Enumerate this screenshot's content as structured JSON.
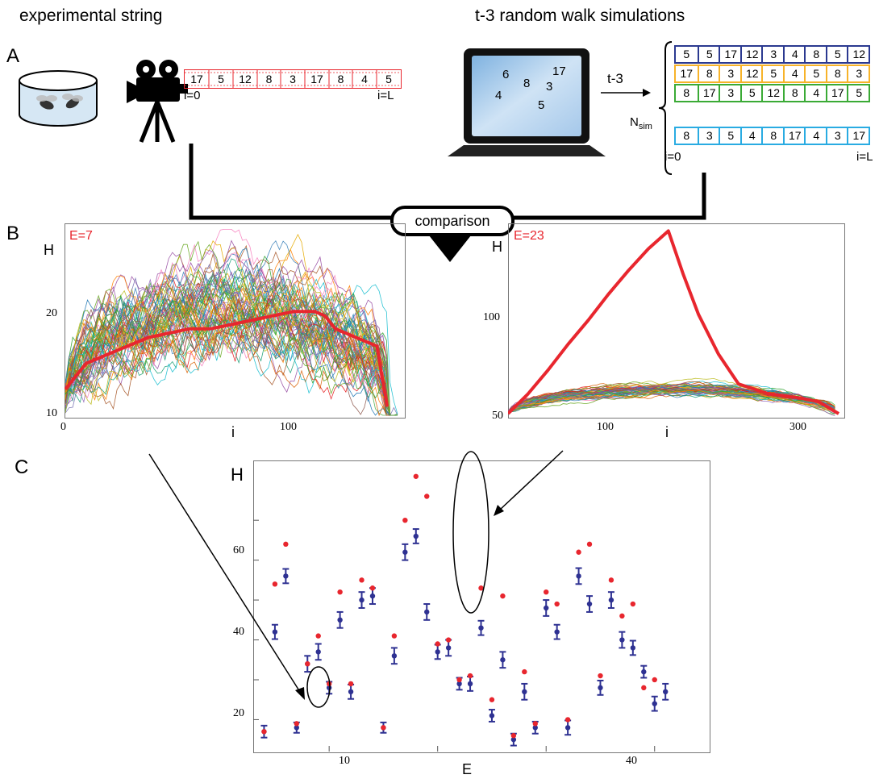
{
  "header": {
    "left_title": "experimental string",
    "right_title": "t-3 random walk simulations"
  },
  "panels": {
    "a": "A",
    "b": "B",
    "c": "C"
  },
  "experimental": {
    "sequence": [
      "17",
      "5",
      "12",
      "8",
      "3",
      "17",
      "8",
      "4",
      "5"
    ],
    "start_label": "i=0",
    "end_label": "i=L"
  },
  "laptop": {
    "numbers": [
      "6",
      "8",
      "17",
      "3",
      "4",
      "5"
    ]
  },
  "simulation": {
    "arrow_label": "t-3",
    "nsim_label": "N",
    "nsim_sub": "sim",
    "start_label": "i=0",
    "end_label": "i=L",
    "rows": [
      {
        "color": "#2b3990",
        "values": [
          "5",
          "5",
          "17",
          "12",
          "3",
          "4",
          "8",
          "5",
          "12"
        ]
      },
      {
        "color": "#f7b329",
        "values": [
          "17",
          "8",
          "3",
          "12",
          "5",
          "4",
          "5",
          "8",
          "3"
        ]
      },
      {
        "color": "#3aaa35",
        "values": [
          "8",
          "17",
          "3",
          "5",
          "12",
          "8",
          "4",
          "17",
          "5"
        ]
      },
      {
        "color": "#29abe2",
        "values": [
          "8",
          "3",
          "5",
          "4",
          "8",
          "17",
          "4",
          "3",
          "17"
        ]
      }
    ]
  },
  "comparison_label": "comparison",
  "chart_data": [
    {
      "type": "line",
      "annotation": "E=7",
      "ylabel": "H",
      "xlabel": "i",
      "xticks": [
        "0",
        "100"
      ],
      "yticks": [
        "10",
        "20"
      ],
      "xlim": [
        0,
        160
      ],
      "ylim": [
        10,
        32
      ],
      "highlight_series": {
        "color": "#e8262e",
        "x": [
          0,
          10,
          20,
          30,
          40,
          50,
          60,
          70,
          80,
          90,
          100,
          110,
          120,
          125,
          130,
          140,
          150,
          155
        ],
        "y": [
          13,
          16,
          17,
          18,
          19,
          19.5,
          20,
          20,
          20.5,
          21,
          21.5,
          22,
          22,
          21.5,
          20,
          19,
          18,
          11
        ]
      }
    },
    {
      "type": "line",
      "annotation": "E=23",
      "ylabel": "H",
      "xlabel": "i",
      "xticks": [
        "100",
        "300"
      ],
      "yticks": [
        "50",
        "100"
      ],
      "xlim": [
        0,
        330
      ],
      "ylim": [
        50,
        145
      ],
      "highlight_series": {
        "color": "#e8262e",
        "x": [
          0,
          20,
          40,
          60,
          80,
          100,
          120,
          140,
          160,
          175,
          190,
          210,
          230,
          260,
          290,
          310,
          330
        ],
        "y": [
          50,
          60,
          72,
          85,
          97,
          110,
          122,
          133,
          142,
          120,
          100,
          80,
          65,
          60,
          58,
          56,
          50
        ]
      }
    },
    {
      "type": "scatter",
      "xlabel": "E",
      "ylabel": "H",
      "xticks": [
        "10",
        "40"
      ],
      "yticks": [
        "20",
        "40",
        "60"
      ],
      "xlim": [
        3,
        45
      ],
      "ylim": [
        12,
        85
      ],
      "series": [
        {
          "name": "",
          "color": "#e8262e",
          "points": [
            [
              4,
              17
            ],
            [
              5,
              54
            ],
            [
              6,
              64
            ],
            [
              7,
              19
            ],
            [
              8,
              34
            ],
            [
              9,
              41
            ],
            [
              10,
              29
            ],
            [
              11,
              52
            ],
            [
              12,
              29
            ],
            [
              13,
              55
            ],
            [
              14,
              53
            ],
            [
              15,
              18
            ],
            [
              16,
              41
            ],
            [
              17,
              70
            ],
            [
              18,
              81
            ],
            [
              19,
              76
            ],
            [
              20,
              39
            ],
            [
              21,
              40
            ],
            [
              22,
              30
            ],
            [
              23,
              31
            ],
            [
              24,
              53
            ],
            [
              25,
              25
            ],
            [
              26,
              51
            ],
            [
              27,
              16
            ],
            [
              28,
              32
            ],
            [
              29,
              19
            ],
            [
              30,
              52
            ],
            [
              31,
              49
            ],
            [
              32,
              20
            ],
            [
              33,
              62
            ],
            [
              34,
              64
            ],
            [
              35,
              31
            ],
            [
              36,
              55
            ],
            [
              37,
              46
            ],
            [
              38,
              49
            ],
            [
              39,
              28
            ],
            [
              40,
              30
            ]
          ]
        },
        {
          "name": "",
          "color": "#2e3192",
          "points": [
            [
              4,
              17,
              1.5
            ],
            [
              5,
              42,
              1.8
            ],
            [
              6,
              56,
              1.8
            ],
            [
              7,
              18,
              1.3
            ],
            [
              8,
              34,
              2
            ],
            [
              9,
              37,
              2
            ],
            [
              10,
              28,
              1.5
            ],
            [
              11,
              45,
              2
            ],
            [
              12,
              27,
              1.8
            ],
            [
              13,
              50,
              2
            ],
            [
              14,
              51,
              2
            ],
            [
              15,
              18,
              1.3
            ],
            [
              16,
              36,
              2
            ],
            [
              17,
              62,
              2
            ],
            [
              18,
              66,
              1.8
            ],
            [
              19,
              47,
              2
            ],
            [
              20,
              37,
              1.8
            ],
            [
              21,
              38,
              2
            ],
            [
              22,
              29,
              1.5
            ],
            [
              23,
              29,
              1.8
            ],
            [
              24,
              43,
              1.8
            ],
            [
              25,
              21,
              1.5
            ],
            [
              26,
              35,
              2
            ],
            [
              27,
              15,
              1.5
            ],
            [
              28,
              27,
              2
            ],
            [
              29,
              18,
              1.5
            ],
            [
              30,
              48,
              2
            ],
            [
              31,
              42,
              1.8
            ],
            [
              32,
              18,
              1.8
            ],
            [
              33,
              56,
              2
            ],
            [
              34,
              49,
              2
            ],
            [
              35,
              28,
              1.8
            ],
            [
              36,
              50,
              2
            ],
            [
              37,
              40,
              2
            ],
            [
              38,
              38,
              1.8
            ],
            [
              39,
              32,
              1.5
            ],
            [
              40,
              24,
              1.8
            ],
            [
              41,
              27,
              2
            ]
          ]
        }
      ]
    }
  ]
}
